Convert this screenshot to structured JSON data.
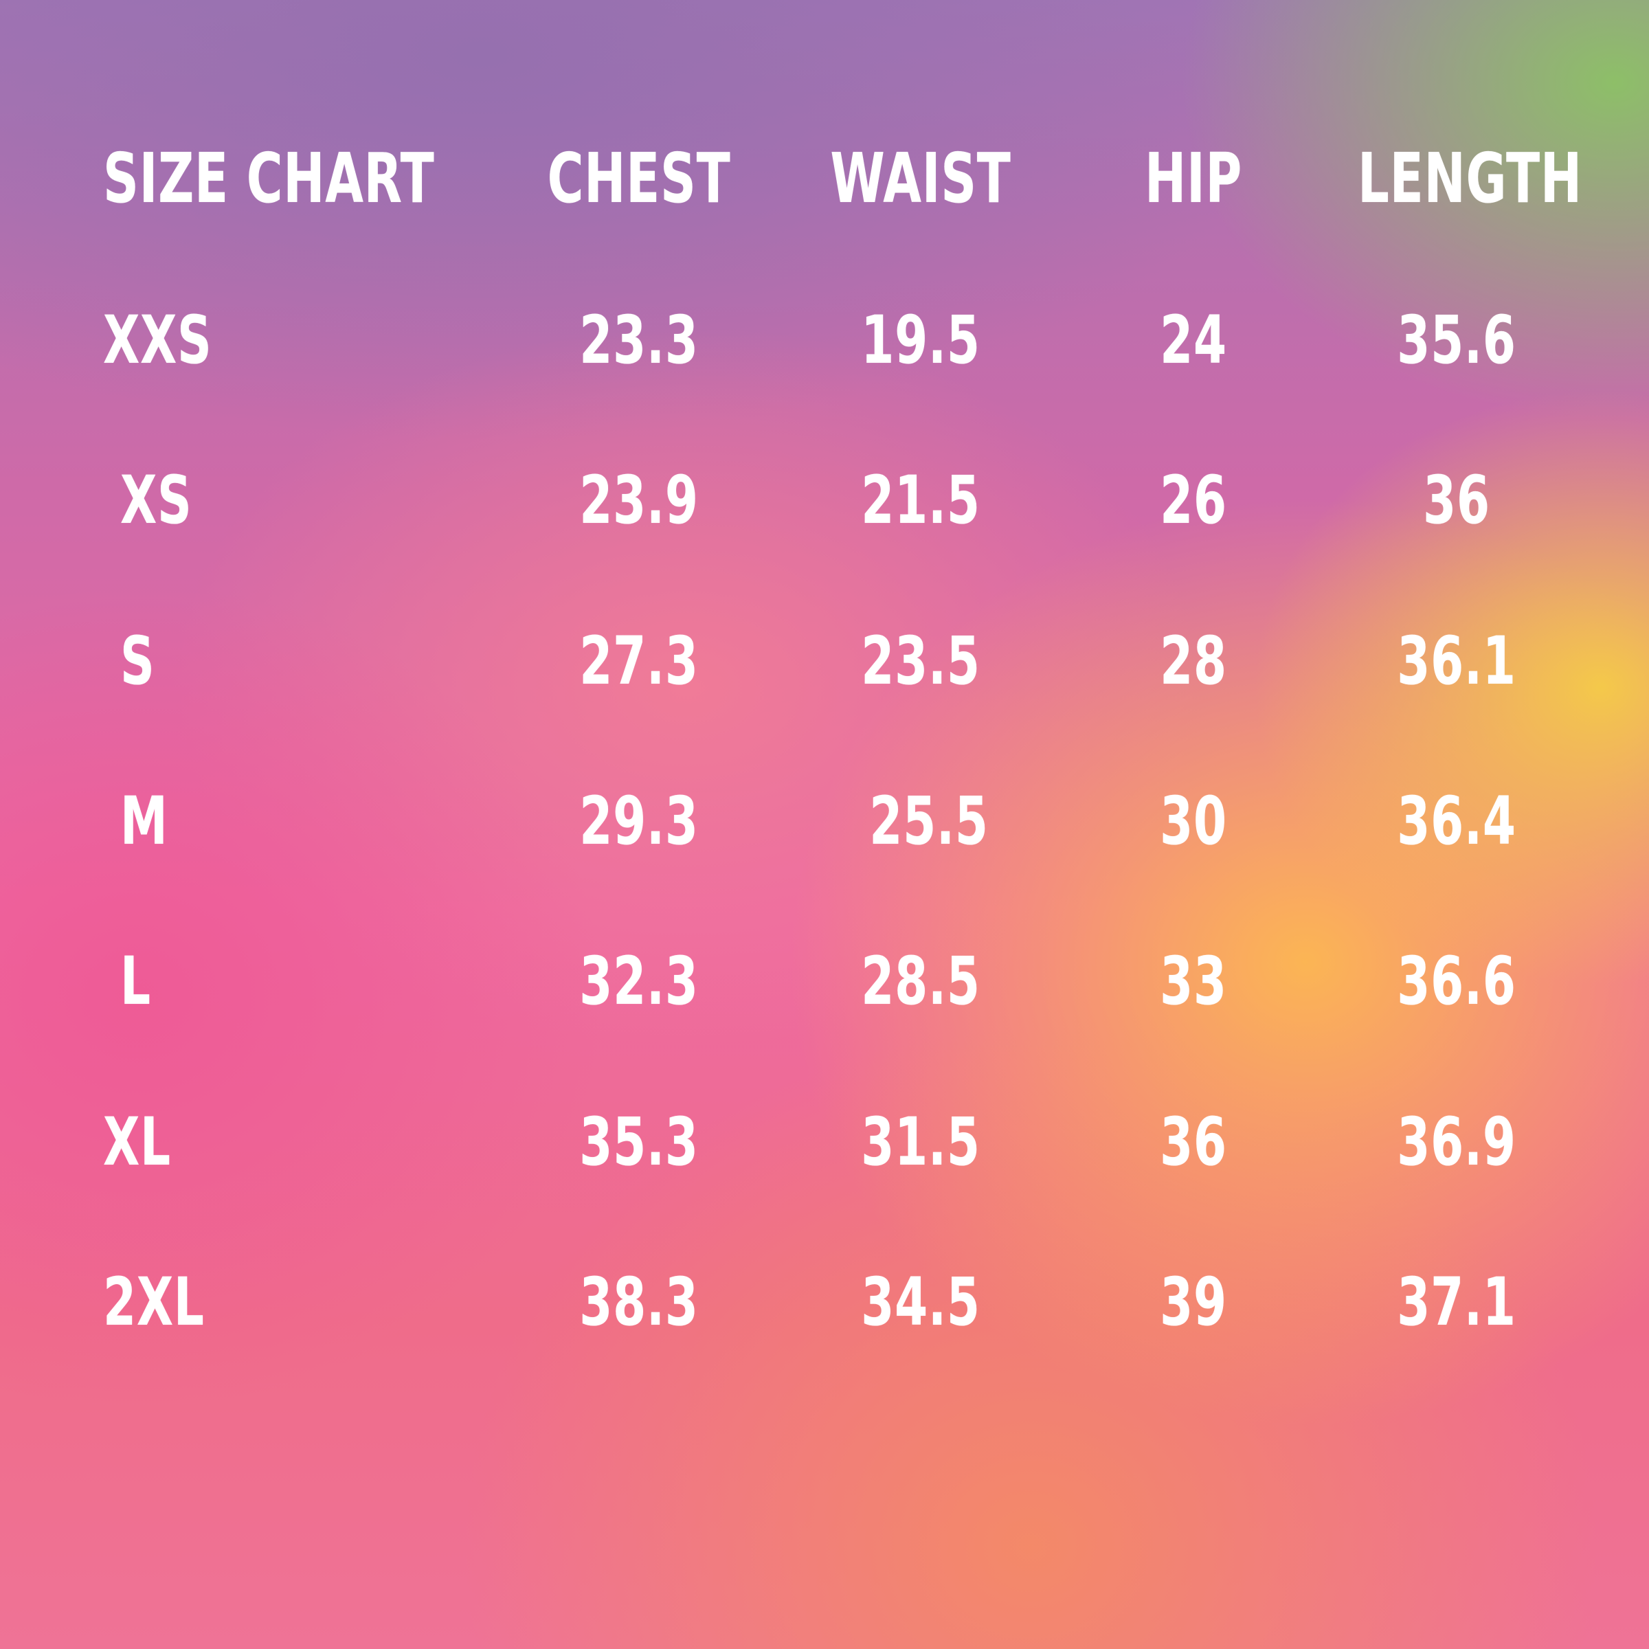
{
  "headers": {
    "size": "SIZE CHART",
    "chest": "CHEST",
    "waist": "WAIST",
    "hip": "HIP",
    "length": "LENGTH"
  },
  "rows": [
    {
      "size": "XXS",
      "chest": "23.3",
      "waist": "19.5",
      "hip": "24",
      "length": "35.6"
    },
    {
      "size": "XS",
      "chest": "23.9",
      "waist": "21.5",
      "hip": "26",
      "length": "36"
    },
    {
      "size": "S",
      "chest": "27.3",
      "waist": "23.5",
      "hip": "28",
      "length": "36.1"
    },
    {
      "size": "M",
      "chest": "29.3",
      "waist": "25.5",
      "hip": "30",
      "length": "36.4"
    },
    {
      "size": "L",
      "chest": "32.3",
      "waist": "28.5",
      "hip": "33",
      "length": "36.6"
    },
    {
      "size": "XL",
      "chest": "35.3",
      "waist": "31.5",
      "hip": "36",
      "length": "36.9"
    },
    {
      "size": "2XL",
      "chest": "38.3",
      "waist": "34.5",
      "hip": "39",
      "length": "37.1"
    }
  ],
  "colors": {
    "text": "#ffffff",
    "purple": "#9a72b4",
    "pink": "#ee5d9c",
    "orange": "#fbb450",
    "yellow": "#f4cc46",
    "green": "#8fc064"
  }
}
